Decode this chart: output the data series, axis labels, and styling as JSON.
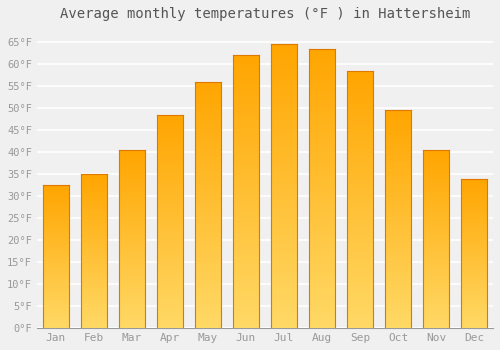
{
  "months": [
    "Jan",
    "Feb",
    "Mar",
    "Apr",
    "May",
    "Jun",
    "Jul",
    "Aug",
    "Sep",
    "Oct",
    "Nov",
    "Dec"
  ],
  "values": [
    32.5,
    35.0,
    40.5,
    48.5,
    56.0,
    62.0,
    64.5,
    63.5,
    58.5,
    49.5,
    40.5,
    34.0
  ],
  "bar_color_main": "#FFA500",
  "bar_color_light": "#FFD966",
  "bar_edge_color": "#E07800",
  "title": "Average monthly temperatures (°F ) in Hattersheim",
  "title_fontsize": 10,
  "ytick_labels": [
    "0°F",
    "5°F",
    "10°F",
    "15°F",
    "20°F",
    "25°F",
    "30°F",
    "35°F",
    "40°F",
    "45°F",
    "50°F",
    "55°F",
    "60°F",
    "65°F"
  ],
  "ytick_values": [
    0,
    5,
    10,
    15,
    20,
    25,
    30,
    35,
    40,
    45,
    50,
    55,
    60,
    65
  ],
  "ylim": [
    0,
    68
  ],
  "background_color": "#f0f0f0",
  "grid_color": "#ffffff",
  "label_color": "#999999",
  "title_color": "#555555",
  "bar_width": 0.7
}
